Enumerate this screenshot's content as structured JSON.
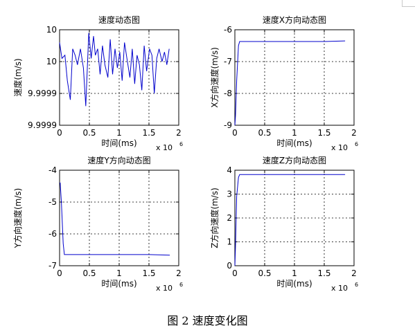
{
  "figure": {
    "caption": "图 2  速度变化图"
  },
  "chart_data": [
    {
      "type": "line",
      "title": "速度动态图",
      "xlabel": "时间(ms)",
      "ylabel": "速度(m/s)",
      "x_multiplier": "x 10",
      "x_multiplier_exp": "6",
      "xlim": [
        0,
        2
      ],
      "ylim": [
        0,
        3
      ],
      "xticks": [
        0,
        0.5,
        1,
        1.5,
        2
      ],
      "xtick_labels": [
        "0",
        "0.5",
        "1",
        "1.5",
        "2"
      ],
      "yticks": [
        0,
        1,
        2,
        3
      ],
      "ytick_labels": [
        "9.9999",
        "9.9999",
        "10",
        "10"
      ],
      "grid": true,
      "series": [
        {
          "color": "#0000cc",
          "x": [
            0,
            0.04,
            0.09,
            0.13,
            0.18,
            0.22,
            0.26,
            0.3,
            0.35,
            0.4,
            0.44,
            0.49,
            0.53,
            0.57,
            0.6,
            0.64,
            0.68,
            0.72,
            0.76,
            0.81,
            0.85,
            0.89,
            0.93,
            0.97,
            1.01,
            1.05,
            1.09,
            1.13,
            1.18,
            1.22,
            1.26,
            1.3,
            1.34,
            1.38,
            1.42,
            1.46,
            1.51,
            1.55,
            1.59,
            1.63,
            1.67,
            1.72,
            1.76,
            1.8,
            1.84
          ],
          "y": [
            2.6,
            2.1,
            2.2,
            1.4,
            0.8,
            2.4,
            2.2,
            1.9,
            2.4,
            1.8,
            0.6,
            2.9,
            2.1,
            2.8,
            2.2,
            2.4,
            1.6,
            2.5,
            1.9,
            1.5,
            2.7,
            1.6,
            2.4,
            1.8,
            2.3,
            1.4,
            2.6,
            2.1,
            1.5,
            2.4,
            1.3,
            2.2,
            1.9,
            1.1,
            2.5,
            1.7,
            2.4,
            2.2,
            1.0,
            2.1,
            2.4,
            2.0,
            2.3,
            1.9,
            2.4
          ]
        }
      ]
    },
    {
      "type": "line",
      "title": "速度X方向动态图",
      "xlabel": "时间(ms)",
      "ylabel": "X方向速度(m/s)",
      "x_multiplier": "x 10",
      "x_multiplier_exp": "6",
      "xlim": [
        0,
        2
      ],
      "ylim": [
        -9,
        -6
      ],
      "xticks": [
        0,
        0.5,
        1,
        1.5,
        2
      ],
      "xtick_labels": [
        "0",
        "0.5",
        "1",
        "1.5",
        "2"
      ],
      "yticks": [
        -9,
        -8,
        -7,
        -6
      ],
      "ytick_labels": [
        "-9",
        "-8",
        "-7",
        "-6"
      ],
      "grid": true,
      "series": [
        {
          "color": "#0000cc",
          "x": [
            0.0,
            0.01,
            0.03,
            0.06,
            0.08,
            0.5,
            1.0,
            1.5,
            1.85
          ],
          "y": [
            -9.0,
            -8.7,
            -7.6,
            -6.5,
            -6.37,
            -6.37,
            -6.37,
            -6.37,
            -6.35
          ]
        }
      ]
    },
    {
      "type": "line",
      "title": "速度Y方向动态图",
      "xlabel": "时间(ms)",
      "ylabel": "Y方向速度(m/s)",
      "x_multiplier": "x 10",
      "x_multiplier_exp": "6",
      "xlim": [
        0,
        2
      ],
      "ylim": [
        -7,
        -4
      ],
      "xticks": [
        0,
        0.5,
        1,
        1.5,
        2
      ],
      "xtick_labels": [
        "0",
        "0.5",
        "1",
        "1.5",
        "2"
      ],
      "yticks": [
        -7,
        -6,
        -5,
        -4
      ],
      "ytick_labels": [
        "-7",
        "-6",
        "-5",
        "-4"
      ],
      "grid": true,
      "series": [
        {
          "color": "#0000cc",
          "x": [
            0.0,
            0.01,
            0.03,
            0.06,
            0.08,
            0.5,
            1.0,
            1.5,
            1.85
          ],
          "y": [
            -4.4,
            -4.4,
            -5.0,
            -6.3,
            -6.65,
            -6.65,
            -6.65,
            -6.65,
            -6.67
          ]
        }
      ]
    },
    {
      "type": "line",
      "title": "速度Z方向动态图",
      "xlabel": "时间(ms)",
      "ylabel": "Z方向速度(m/s)",
      "x_multiplier": "x 10",
      "x_multiplier_exp": "6",
      "xlim": [
        0,
        2
      ],
      "ylim": [
        0,
        4
      ],
      "xticks": [
        0,
        0.5,
        1,
        1.5,
        2
      ],
      "xtick_labels": [
        "0",
        "0.5",
        "1",
        "1.5",
        "2"
      ],
      "yticks": [
        0,
        1,
        2,
        3,
        4
      ],
      "ytick_labels": [
        "0",
        "1",
        "2",
        "3",
        "4"
      ],
      "grid": true,
      "series": [
        {
          "color": "#0000cc",
          "x": [
            0.0,
            0.01,
            0.03,
            0.06,
            0.08,
            0.5,
            1.0,
            1.5,
            1.85
          ],
          "y": [
            0.0,
            0.8,
            2.9,
            3.7,
            3.82,
            3.82,
            3.82,
            3.82,
            3.82
          ]
        }
      ]
    }
  ]
}
